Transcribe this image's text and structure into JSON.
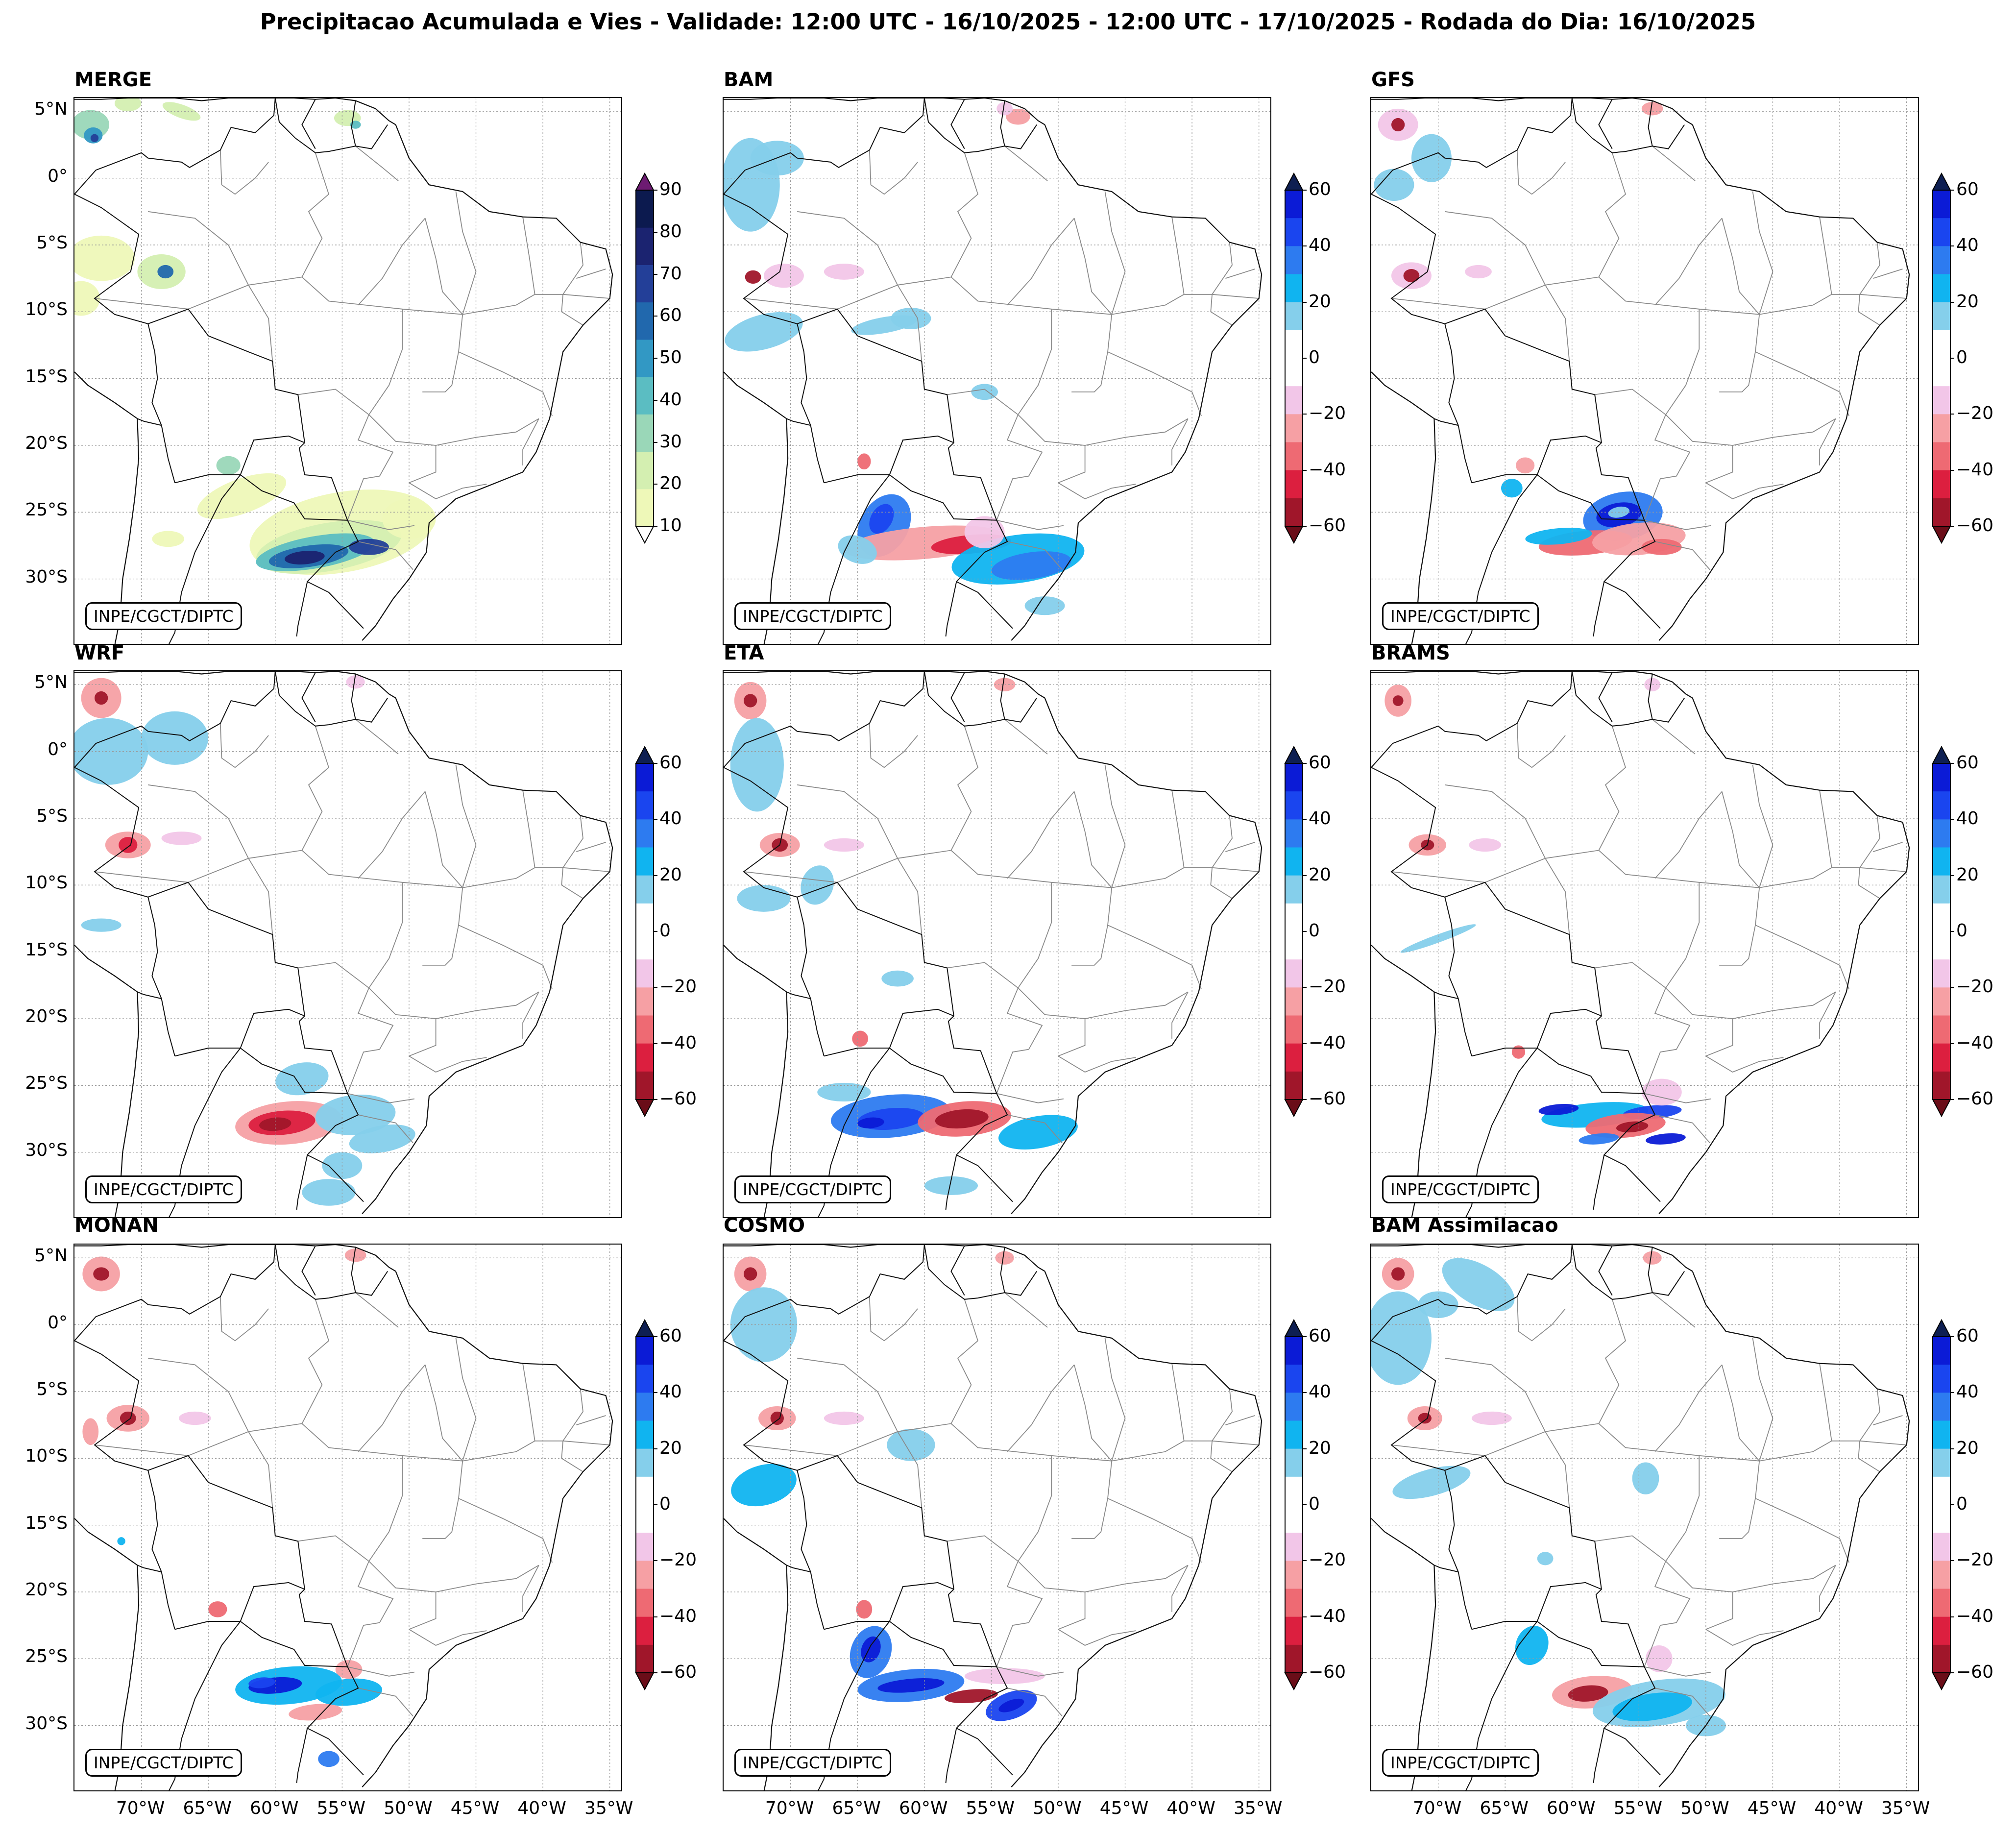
{
  "figure": {
    "title": "Precipitacao Acumulada e Vies - Validade: 12:00 UTC - 16/10/2025 - 12:00 UTC - 17/10/2025 - Rodada do Dia: 16/10/2025",
    "credit": "INPE/CGCT/DIPTC"
  },
  "extent": {
    "lon": [
      -75,
      -34
    ],
    "lat": [
      -35,
      6
    ]
  },
  "axes": {
    "lat_ticks": [
      {
        "value": 5,
        "label": "5°N"
      },
      {
        "value": 0,
        "label": "0°"
      },
      {
        "value": -5,
        "label": "5°S"
      },
      {
        "value": -10,
        "label": "10°S"
      },
      {
        "value": -15,
        "label": "15°S"
      },
      {
        "value": -20,
        "label": "20°S"
      },
      {
        "value": -25,
        "label": "25°S"
      },
      {
        "value": -30,
        "label": "30°S"
      }
    ],
    "lon_ticks": [
      {
        "value": -70,
        "label": "70°W"
      },
      {
        "value": -65,
        "label": "65°W"
      },
      {
        "value": -60,
        "label": "60°W"
      },
      {
        "value": -55,
        "label": "55°W"
      },
      {
        "value": -50,
        "label": "50°W"
      },
      {
        "value": -45,
        "label": "45°W"
      },
      {
        "value": -40,
        "label": "40°W"
      },
      {
        "value": -35,
        "label": "35°W"
      }
    ]
  },
  "colorbars": {
    "precip": {
      "ticks": [
        "10",
        "20",
        "30",
        "40",
        "50",
        "60",
        "70",
        "80",
        "90"
      ],
      "colors": [
        "#eef8b8",
        "#d4efb1",
        "#9ad7b8",
        "#5bbdc2",
        "#3298c4",
        "#2168ad",
        "#233f98",
        "#1b2370",
        "#0c1a4f"
      ],
      "extend_top": "#6d1b72",
      "extend_bottom": "#ffffff"
    },
    "bias": {
      "ticks": [
        "60",
        "40",
        "20",
        "0",
        "−20",
        "−40",
        "−60"
      ],
      "colors": [
        "#0b1bd6",
        "#1a45ef",
        "#2d7bf0",
        "#10b4f0",
        "#85cfeb",
        "#ffffff",
        "#ffffff",
        "#f2c6e8",
        "#f6a0a4",
        "#ee6a73",
        "#dc1f3f",
        "#a0162a"
      ],
      "extend_top": "#0e1f52",
      "extend_bottom": "#6a0d18"
    }
  },
  "panels": [
    {
      "title": "MERGE",
      "kind": "precip"
    },
    {
      "title": "BAM",
      "kind": "bias"
    },
    {
      "title": "GFS",
      "kind": "bias"
    },
    {
      "title": "WRF",
      "kind": "bias"
    },
    {
      "title": "ETA",
      "kind": "bias"
    },
    {
      "title": "BRAMS",
      "kind": "bias"
    },
    {
      "title": "MONAN",
      "kind": "bias"
    },
    {
      "title": "COSMO",
      "kind": "bias"
    },
    {
      "title": "BAM Assimilacao",
      "kind": "bias"
    }
  ]
}
